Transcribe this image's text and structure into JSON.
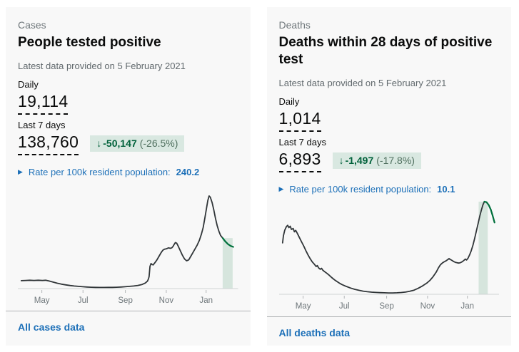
{
  "theme": {
    "page_bg": "#ffffff",
    "card_bg": "#f8f8f8",
    "text": "#0b0c0c",
    "muted": "#626a6e",
    "kicker": "#6f777b",
    "link_blue": "#1d70b8",
    "badge_bg": "#d9e8e1",
    "badge_green": "#00613a",
    "line_color": "#303538",
    "recent_green": "#00703c",
    "band_fill": "#d6e5dd",
    "axis_line": "#cfd3d5",
    "tick_color": "#b1b4b6",
    "tick_label": "#6f777b",
    "divider": "#b1b4b6"
  },
  "cards": [
    {
      "kicker": "Cases",
      "title": "People tested positive",
      "date_note": "Latest data provided on 5 February 2021",
      "daily_label": "Daily",
      "daily_value": "19,114",
      "week_label": "Last 7 days",
      "week_value": "138,760",
      "change": {
        "arrow": "↓",
        "value": "-50,147",
        "percent": "(-26.5%)"
      },
      "rate_icon": "▶",
      "rate_label": "Rate per 100k resident population:",
      "rate_value": "240.2",
      "link_label": "All cases data"
    },
    {
      "kicker": "Deaths",
      "title": "Deaths within 28 days of positive test",
      "date_note": "Latest data provided on 5 February 2021",
      "daily_label": "Daily",
      "daily_value": "1,014",
      "week_label": "Last 7 days",
      "week_value": "6,893",
      "change": {
        "arrow": "↓",
        "value": "-1,497",
        "percent": "(-17.8%)"
      },
      "rate_icon": "▶",
      "rate_label": "Rate per 100k resident population:",
      "rate_value": "10.1",
      "link_label": "All deaths data"
    }
  ],
  "chart_data": [
    {
      "type": "line",
      "title": "People tested positive, daily trend Apr 2020 - Feb 2021",
      "x_ticks": [
        {
          "label": "May",
          "x": 0.097
        },
        {
          "label": "Jul",
          "x": 0.291
        },
        {
          "label": "Sep",
          "x": 0.491
        },
        {
          "label": "Nov",
          "x": 0.684
        },
        {
          "label": "Jan",
          "x": 0.872
        }
      ],
      "y_note": "values normalized to peak (no y-axis shown)",
      "ylim": [
        0,
        1
      ],
      "highlight_band": {
        "x0": 0.95,
        "x1": 0.997
      },
      "series": [
        {
          "name": "daily-cases",
          "points": [
            [
              0,
              0.085
            ],
            [
              0.02,
              0.088
            ],
            [
              0.04,
              0.09
            ],
            [
              0.06,
              0.088
            ],
            [
              0.08,
              0.09
            ],
            [
              0.1,
              0.088
            ],
            [
              0.115,
              0.09
            ],
            [
              0.13,
              0.082
            ],
            [
              0.15,
              0.07
            ],
            [
              0.17,
              0.058
            ],
            [
              0.19,
              0.048
            ],
            [
              0.21,
              0.04
            ],
            [
              0.23,
              0.033
            ],
            [
              0.25,
              0.028
            ],
            [
              0.27,
              0.024
            ],
            [
              0.29,
              0.02
            ],
            [
              0.31,
              0.017
            ],
            [
              0.33,
              0.015
            ],
            [
              0.35,
              0.013
            ],
            [
              0.37,
              0.012
            ],
            [
              0.39,
              0.012
            ],
            [
              0.41,
              0.013
            ],
            [
              0.43,
              0.013
            ],
            [
              0.45,
              0.015
            ],
            [
              0.47,
              0.017
            ],
            [
              0.49,
              0.02
            ],
            [
              0.51,
              0.024
            ],
            [
              0.53,
              0.028
            ],
            [
              0.55,
              0.034
            ],
            [
              0.57,
              0.045
            ],
            [
              0.585,
              0.06
            ],
            [
              0.595,
              0.08
            ],
            [
              0.6,
              0.105
            ],
            [
              0.603,
              0.13
            ],
            [
              0.607,
              0.24
            ],
            [
              0.612,
              0.27
            ],
            [
              0.617,
              0.26
            ],
            [
              0.622,
              0.255
            ],
            [
              0.627,
              0.27
            ],
            [
              0.632,
              0.285
            ],
            [
              0.64,
              0.31
            ],
            [
              0.65,
              0.35
            ],
            [
              0.66,
              0.39
            ],
            [
              0.668,
              0.415
            ],
            [
              0.675,
              0.425
            ],
            [
              0.685,
              0.43
            ],
            [
              0.695,
              0.44
            ],
            [
              0.703,
              0.435
            ],
            [
              0.71,
              0.44
            ],
            [
              0.716,
              0.455
            ],
            [
              0.722,
              0.48
            ],
            [
              0.727,
              0.497
            ],
            [
              0.733,
              0.49
            ],
            [
              0.74,
              0.46
            ],
            [
              0.75,
              0.41
            ],
            [
              0.76,
              0.36
            ],
            [
              0.77,
              0.32
            ],
            [
              0.78,
              0.3
            ],
            [
              0.79,
              0.31
            ],
            [
              0.8,
              0.35
            ],
            [
              0.81,
              0.39
            ],
            [
              0.82,
              0.43
            ],
            [
              0.83,
              0.47
            ],
            [
              0.84,
              0.52
            ],
            [
              0.85,
              0.59
            ],
            [
              0.858,
              0.66
            ],
            [
              0.866,
              0.76
            ],
            [
              0.874,
              0.87
            ],
            [
              0.88,
              0.95
            ],
            [
              0.886,
              1.0
            ],
            [
              0.892,
              0.985
            ],
            [
              0.9,
              0.93
            ],
            [
              0.908,
              0.85
            ],
            [
              0.916,
              0.76
            ],
            [
              0.924,
              0.68
            ],
            [
              0.932,
              0.62
            ],
            [
              0.94,
              0.575
            ],
            [
              0.95,
              0.545
            ]
          ]
        },
        {
          "name": "last-7-days",
          "points": [
            [
              0.95,
              0.545
            ],
            [
              0.962,
              0.51
            ],
            [
              0.975,
              0.48
            ],
            [
              0.988,
              0.46
            ],
            [
              1,
              0.45
            ]
          ]
        }
      ]
    },
    {
      "type": "line",
      "title": "Deaths within 28 days of positive test, daily trend Apr 2020 - Feb 2021",
      "x_ticks": [
        {
          "label": "May",
          "x": 0.097
        },
        {
          "label": "Jul",
          "x": 0.291
        },
        {
          "label": "Sep",
          "x": 0.491
        },
        {
          "label": "Nov",
          "x": 0.684
        },
        {
          "label": "Jan",
          "x": 0.872
        }
      ],
      "y_note": "values normalized to peak (no y-axis shown)",
      "ylim": [
        0,
        1
      ],
      "highlight_band": {
        "x0": 0.925,
        "x1": 0.968
      },
      "series": [
        {
          "name": "daily-deaths",
          "points": [
            [
              0,
              0.555
            ],
            [
              0.004,
              0.63
            ],
            [
              0.01,
              0.69
            ],
            [
              0.018,
              0.73
            ],
            [
              0.024,
              0.745
            ],
            [
              0.03,
              0.72
            ],
            [
              0.036,
              0.735
            ],
            [
              0.042,
              0.7
            ],
            [
              0.05,
              0.71
            ],
            [
              0.056,
              0.675
            ],
            [
              0.062,
              0.69
            ],
            [
              0.07,
              0.655
            ],
            [
              0.08,
              0.61
            ],
            [
              0.09,
              0.565
            ],
            [
              0.1,
              0.52
            ],
            [
              0.11,
              0.47
            ],
            [
              0.12,
              0.425
            ],
            [
              0.13,
              0.385
            ],
            [
              0.14,
              0.35
            ],
            [
              0.15,
              0.325
            ],
            [
              0.158,
              0.3
            ],
            [
              0.164,
              0.31
            ],
            [
              0.17,
              0.285
            ],
            [
              0.178,
              0.27
            ],
            [
              0.184,
              0.28
            ],
            [
              0.19,
              0.26
            ],
            [
              0.198,
              0.245
            ],
            [
              0.21,
              0.225
            ],
            [
              0.22,
              0.205
            ],
            [
              0.23,
              0.185
            ],
            [
              0.24,
              0.165
            ],
            [
              0.25,
              0.148
            ],
            [
              0.26,
              0.132
            ],
            [
              0.27,
              0.118
            ],
            [
              0.28,
              0.105
            ],
            [
              0.3,
              0.085
            ],
            [
              0.32,
              0.068
            ],
            [
              0.34,
              0.054
            ],
            [
              0.36,
              0.043
            ],
            [
              0.38,
              0.034
            ],
            [
              0.4,
              0.028
            ],
            [
              0.42,
              0.023
            ],
            [
              0.44,
              0.02
            ],
            [
              0.46,
              0.018
            ],
            [
              0.48,
              0.016
            ],
            [
              0.5,
              0.015
            ],
            [
              0.52,
              0.015
            ],
            [
              0.54,
              0.016
            ],
            [
              0.56,
              0.019
            ],
            [
              0.58,
              0.024
            ],
            [
              0.6,
              0.032
            ],
            [
              0.62,
              0.045
            ],
            [
              0.64,
              0.065
            ],
            [
              0.66,
              0.09
            ],
            [
              0.68,
              0.12
            ],
            [
              0.695,
              0.15
            ],
            [
              0.71,
              0.19
            ],
            [
              0.725,
              0.24
            ],
            [
              0.735,
              0.285
            ],
            [
              0.745,
              0.32
            ],
            [
              0.755,
              0.34
            ],
            [
              0.762,
              0.35
            ],
            [
              0.77,
              0.36
            ],
            [
              0.778,
              0.372
            ],
            [
              0.785,
              0.385
            ],
            [
              0.79,
              0.378
            ],
            [
              0.8,
              0.365
            ],
            [
              0.808,
              0.352
            ],
            [
              0.816,
              0.345
            ],
            [
              0.824,
              0.34
            ],
            [
              0.832,
              0.337
            ],
            [
              0.84,
              0.342
            ],
            [
              0.848,
              0.352
            ],
            [
              0.855,
              0.365
            ],
            [
              0.862,
              0.38
            ],
            [
              0.868,
              0.37
            ],
            [
              0.875,
              0.39
            ],
            [
              0.882,
              0.425
            ],
            [
              0.89,
              0.47
            ],
            [
              0.898,
              0.53
            ],
            [
              0.906,
              0.6
            ],
            [
              0.914,
              0.68
            ],
            [
              0.922,
              0.76
            ],
            [
              0.93,
              0.84
            ],
            [
              0.938,
              0.91
            ],
            [
              0.945,
              0.965
            ],
            [
              0.952,
              1.0
            ]
          ]
        },
        {
          "name": "last-7-days",
          "points": [
            [
              0.952,
              1.0
            ],
            [
              0.962,
              0.995
            ],
            [
              0.972,
              0.965
            ],
            [
              0.982,
              0.915
            ],
            [
              0.991,
              0.85
            ],
            [
              1,
              0.775
            ]
          ]
        }
      ]
    }
  ]
}
